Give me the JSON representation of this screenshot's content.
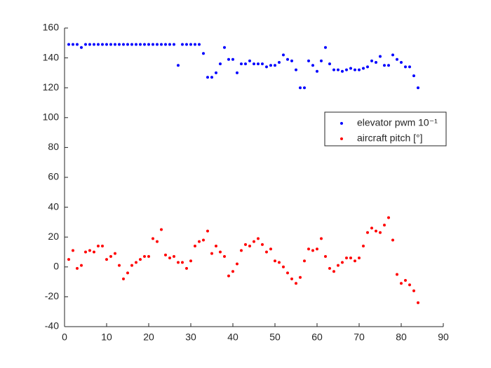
{
  "chart_data": {
    "type": "scatter",
    "x": [
      1,
      2,
      3,
      4,
      5,
      6,
      7,
      8,
      9,
      10,
      11,
      12,
      13,
      14,
      15,
      16,
      17,
      18,
      19,
      20,
      21,
      22,
      23,
      24,
      25,
      26,
      27,
      28,
      29,
      30,
      31,
      32,
      33,
      34,
      35,
      36,
      37,
      38,
      39,
      40,
      41,
      42,
      43,
      44,
      45,
      46,
      47,
      48,
      49,
      50,
      51,
      52,
      53,
      54,
      55,
      56,
      57,
      58,
      59,
      60,
      61,
      62,
      63,
      64,
      65,
      66,
      67,
      68,
      69,
      70,
      71,
      72,
      73,
      74,
      75,
      76,
      77,
      78,
      79,
      80,
      81,
      82,
      83,
      84
    ],
    "series": [
      {
        "name": "elevator pwm 10⁻¹",
        "color": "#0000ff",
        "values": [
          149,
          149,
          149,
          147,
          149,
          149,
          149,
          149,
          149,
          149,
          149,
          149,
          149,
          149,
          149,
          149,
          149,
          149,
          149,
          149,
          149,
          149,
          149,
          149,
          149,
          149,
          135,
          149,
          149,
          149,
          149,
          149,
          143,
          127,
          127,
          130,
          136,
          147,
          139,
          139,
          130,
          136,
          136,
          138,
          136,
          136,
          136,
          134,
          135,
          135,
          137,
          142,
          139,
          138,
          132,
          120,
          120,
          138,
          135,
          131,
          138,
          147,
          136,
          132,
          132,
          131,
          132,
          133,
          132,
          132,
          133,
          134,
          138,
          137,
          141,
          135,
          135,
          142,
          139,
          137,
          134,
          134,
          128,
          120
        ]
      },
      {
        "name": "aircraft pitch [°]",
        "color": "#ff0000",
        "values": [
          5,
          11,
          -1,
          1,
          10,
          11,
          10,
          14,
          14,
          5,
          7,
          9,
          1,
          -8,
          -4,
          1,
          3,
          5,
          7,
          7,
          19,
          17,
          25,
          8,
          6,
          7,
          3,
          3,
          -1,
          4,
          14,
          17,
          18,
          24,
          9,
          14,
          10,
          7,
          -6,
          -3,
          2,
          11,
          15,
          14,
          17,
          19,
          15,
          10,
          12,
          4,
          3,
          0,
          -4,
          -8,
          -11,
          -7,
          4,
          12,
          11,
          12,
          19,
          7,
          -1,
          -3,
          1,
          3,
          6,
          6,
          4,
          6,
          14,
          23,
          26,
          24,
          23,
          28,
          33,
          18,
          -5,
          -11,
          -9,
          -12,
          -16,
          -24
        ]
      }
    ],
    "xlim": [
      0,
      90
    ],
    "xticks": [
      0,
      10,
      20,
      30,
      40,
      50,
      60,
      70,
      80,
      90
    ],
    "ylim": [
      -40,
      160
    ],
    "yticks": [
      -40,
      -20,
      0,
      20,
      40,
      60,
      80,
      100,
      120,
      140,
      160
    ]
  }
}
